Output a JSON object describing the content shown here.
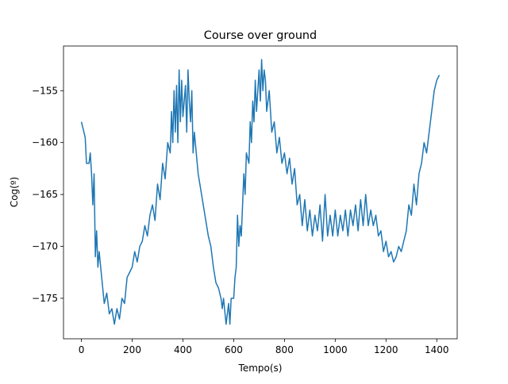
{
  "chart_data": {
    "type": "line",
    "title": "Course over ground",
    "x_label": "Tempo(s)",
    "y_label": "Cog(º)",
    "color": "#1f77b4",
    "x": [
      0,
      15,
      20,
      30,
      35,
      40,
      45,
      50,
      55,
      60,
      65,
      70,
      80,
      90,
      100,
      110,
      120,
      130,
      140,
      150,
      160,
      170,
      180,
      190,
      200,
      210,
      220,
      230,
      240,
      250,
      260,
      270,
      280,
      290,
      300,
      310,
      320,
      330,
      340,
      350,
      355,
      360,
      365,
      370,
      375,
      380,
      385,
      390,
      395,
      400,
      405,
      410,
      415,
      420,
      425,
      430,
      435,
      440,
      445,
      460,
      480,
      500,
      510,
      520,
      530,
      540,
      550,
      555,
      560,
      570,
      580,
      585,
      590,
      600,
      605,
      610,
      615,
      620,
      625,
      630,
      640,
      645,
      650,
      660,
      665,
      670,
      675,
      680,
      685,
      690,
      695,
      700,
      705,
      710,
      715,
      720,
      725,
      730,
      740,
      750,
      760,
      770,
      780,
      790,
      800,
      810,
      820,
      830,
      840,
      850,
      860,
      870,
      880,
      890,
      900,
      910,
      920,
      930,
      940,
      950,
      960,
      970,
      980,
      990,
      1000,
      1010,
      1020,
      1030,
      1040,
      1050,
      1060,
      1070,
      1080,
      1090,
      1100,
      1110,
      1120,
      1130,
      1140,
      1150,
      1160,
      1170,
      1180,
      1190,
      1200,
      1210,
      1220,
      1230,
      1240,
      1250,
      1260,
      1270,
      1280,
      1290,
      1300,
      1310,
      1320,
      1330,
      1340,
      1350,
      1360,
      1370,
      1380,
      1390,
      1400,
      1410
    ],
    "values": [
      -158,
      -159.5,
      -162,
      -162,
      -161,
      -163,
      -166,
      -163,
      -171,
      -168.5,
      -172,
      -170.5,
      -173,
      -175.5,
      -174.5,
      -176.5,
      -176,
      -177.5,
      -176,
      -177,
      -175,
      -175.5,
      -173,
      -172.5,
      -172,
      -170.5,
      -171.5,
      -170,
      -169.5,
      -168,
      -169,
      -167,
      -166,
      -167.5,
      -164,
      -165.5,
      -162,
      -163.5,
      -160,
      -161,
      -157,
      -160,
      -155,
      -159,
      -154.5,
      -160,
      -153,
      -158,
      -154,
      -157.5,
      -156,
      -154.5,
      -159,
      -153,
      -156,
      -158,
      -155,
      -161,
      -159,
      -163,
      -166,
      -169,
      -170,
      -172,
      -173.5,
      -174,
      -175,
      -176,
      -175,
      -177.5,
      -175.5,
      -177.5,
      -175,
      -175,
      -173,
      -172,
      -167,
      -170,
      -168,
      -169,
      -163,
      -165,
      -161,
      -162,
      -158,
      -160,
      -156,
      -158,
      -154,
      -157,
      -155,
      -153,
      -156,
      -152,
      -155,
      -153,
      -154,
      -157,
      -155,
      -159,
      -158,
      -161,
      -159.5,
      -162,
      -161,
      -163,
      -161.5,
      -164,
      -162.5,
      -166,
      -165,
      -168,
      -165.5,
      -168.5,
      -166.5,
      -169,
      -167,
      -168.5,
      -166,
      -169.5,
      -165,
      -169,
      -167,
      -169,
      -166.5,
      -169,
      -167,
      -168.5,
      -166.5,
      -169,
      -166.5,
      -168,
      -166,
      -168.5,
      -165.5,
      -168,
      -165,
      -168,
      -166.5,
      -168,
      -167,
      -169,
      -168.5,
      -170.5,
      -169.5,
      -171,
      -170.5,
      -171.5,
      -171,
      -170,
      -170.5,
      -169.5,
      -168.5,
      -166,
      -167,
      -164,
      -166,
      -163,
      -162,
      -160,
      -161,
      -159,
      -157,
      -155,
      -154,
      -153.5
    ],
    "xlim": [
      -70.5,
      1480.5
    ],
    "ylim": [
      -178.9,
      -150.7
    ],
    "xticks": [
      0,
      200,
      400,
      600,
      800,
      1000,
      1200,
      1400
    ],
    "yticks": [
      {
        "value": -175,
        "label": "−175"
      },
      {
        "value": -170,
        "label": "−170"
      },
      {
        "value": -165,
        "label": "−165"
      },
      {
        "value": -160,
        "label": "−160"
      },
      {
        "value": -155,
        "label": "−155"
      }
    ]
  }
}
